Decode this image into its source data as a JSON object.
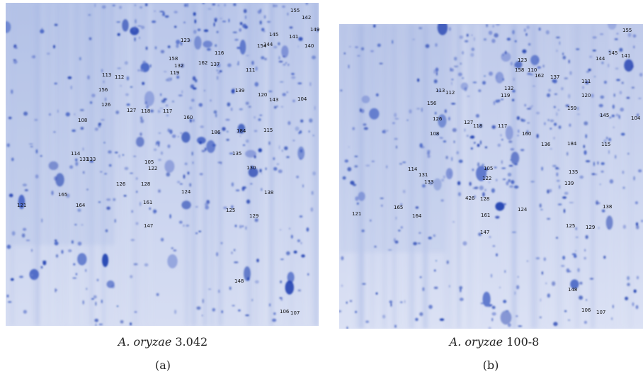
{
  "panel_a": {
    "caption_species": "A. oryzae",
    "caption_strain": "3.042",
    "letter": "(a)",
    "spots": [
      "155",
      "142",
      "149",
      "145",
      "144",
      "141",
      "140",
      "123",
      "154",
      "116",
      "158",
      "132",
      "119",
      "162",
      "137",
      "111",
      "113",
      "112",
      "156",
      "139",
      "120",
      "143",
      "104",
      "126",
      "127",
      "118",
      "117",
      "160",
      "108",
      "186",
      "184",
      "115",
      "114",
      "131",
      "133",
      "135",
      "130",
      "105",
      "122",
      "126",
      "128",
      "124",
      "138",
      "165",
      "164",
      "121",
      "161",
      "125",
      "129",
      "147",
      "148",
      "106",
      "107"
    ]
  },
  "panel_b": {
    "caption_species": "A. oryzae",
    "caption_strain": "100-8",
    "letter": "(b)",
    "spots": [
      "155",
      "144",
      "145",
      "141",
      "123",
      "158",
      "110",
      "162",
      "137",
      "132",
      "119",
      "111",
      "113",
      "112",
      "156",
      "120",
      "159",
      "145",
      "104",
      "126",
      "127",
      "118",
      "117",
      "160",
      "108",
      "136",
      "184",
      "115",
      "114",
      "131",
      "133",
      "105",
      "122",
      "135",
      "139",
      "426",
      "128",
      "124",
      "138",
      "165",
      "164",
      "121",
      "161",
      "125",
      "129",
      "147",
      "148",
      "106",
      "107"
    ]
  }
}
